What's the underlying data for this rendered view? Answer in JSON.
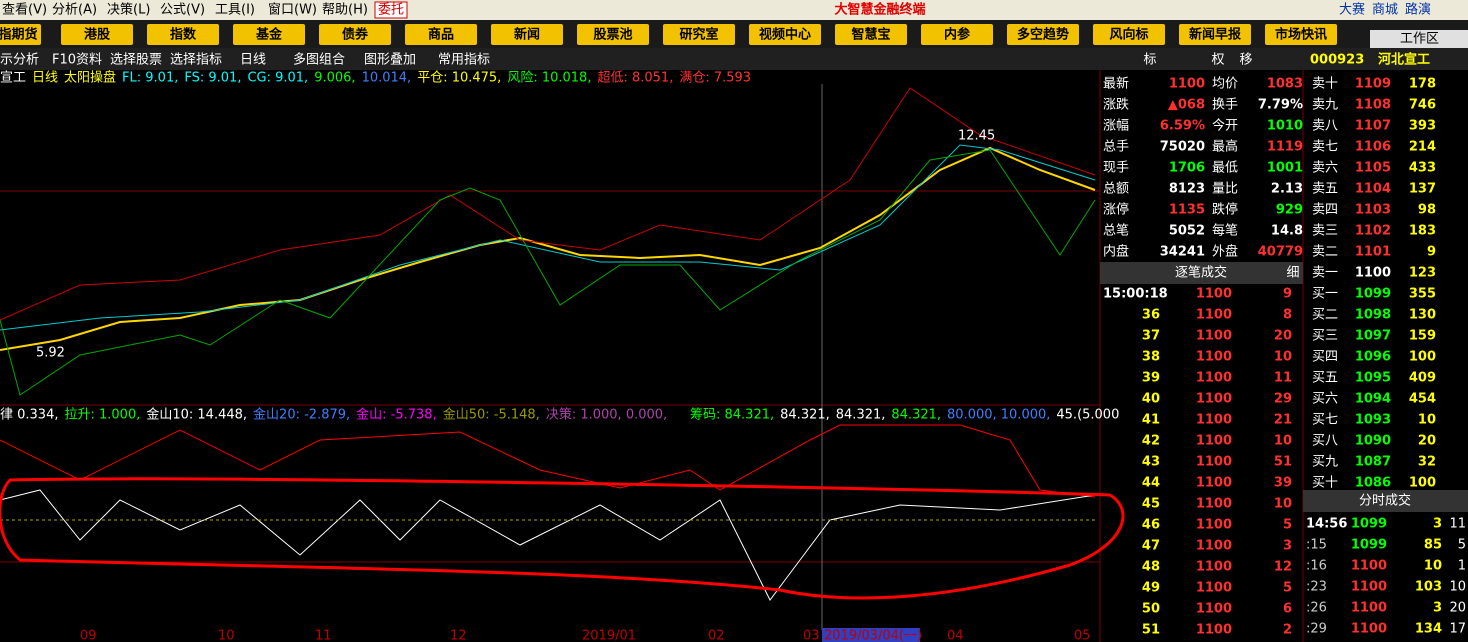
{
  "menu": [
    "查看(V)",
    "分析(A)",
    "决策(L)",
    "公式(V)",
    "工具(I)",
    "窗口(W)",
    "帮助(H)"
  ],
  "entrust": "委托",
  "app_title": "大智慧金融终端",
  "top_right": [
    "大赛",
    "商城",
    "路演"
  ],
  "toolbar": [
    "指期货",
    "港股",
    "指数",
    "基金",
    "债券",
    "商品",
    "新闻",
    "股票池",
    "研究室",
    "视频中心",
    "智慧宝",
    "内参",
    "多空趋势",
    "风向标",
    "新闻早报",
    "市场快讯"
  ],
  "workspace": "工作区",
  "subbar": [
    "示分析",
    "F10资料",
    "选择股票",
    "选择指标",
    "日线",
    "多图组合",
    "图形叠加",
    "常用指标"
  ],
  "right_tabs": [
    "标",
    "权",
    "移"
  ],
  "stock_code": "000923",
  "stock_name": "河北宣工",
  "main_indicator": [
    {
      "text": "宣工",
      "color": "#ffffff"
    },
    {
      "text": "日线",
      "color": "#ffff00"
    },
    {
      "text": "太阳操盘",
      "color": "#ffff00"
    },
    {
      "text": "FL: 9.01,",
      "color": "#00ffff"
    },
    {
      "text": "FS: 9.01,",
      "color": "#00ffff"
    },
    {
      "text": "CG: 9.01,",
      "color": "#00ffff"
    },
    {
      "text": "9.006,",
      "color": "#00ff00"
    },
    {
      "text": "10.014,",
      "color": "#3f7fff"
    },
    {
      "text": "平仓: 10.475,",
      "color": "#ffff00"
    },
    {
      "text": "风险: 10.018,",
      "color": "#00ff00"
    },
    {
      "text": "超低: 8.051,",
      "color": "#ff3333"
    },
    {
      "text": "满仓: 7.593",
      "color": "#ff3333"
    }
  ],
  "lower_indicator": [
    {
      "text": "律 0.334,",
      "color": "#ffffff"
    },
    {
      "text": "拉升: 1.000,",
      "color": "#00ff00"
    },
    {
      "text": "金山10: 14.448,",
      "color": "#ffffff"
    },
    {
      "text": "金山20: -2.879,",
      "color": "#3f7fff"
    },
    {
      "text": "金山: -5.738,",
      "color": "#ff00ff"
    },
    {
      "text": "金山50: -5.148,",
      "color": "#999900"
    },
    {
      "text": "决策: 1.000, 0.000,",
      "color": "#aa44aa"
    },
    {
      "text": "筹码: 84.321,",
      "color": "#00ff00"
    },
    {
      "text": "84.321,",
      "color": "#ffffff"
    },
    {
      "text": "84.321,",
      "color": "#ffffff"
    },
    {
      "text": "84.321,",
      "color": "#00ff00"
    },
    {
      "text": "80.000, 10.000,",
      "color": "#3f7fff"
    },
    {
      "text": "45.(5.000",
      "color": "#ffffff"
    }
  ],
  "price_annotations": [
    "12.45",
    "5.92"
  ],
  "date_axis": [
    "09",
    "10",
    "11",
    "12",
    "2019/01",
    "02",
    "03",
    "2019/03/04(一)",
    "04",
    "05"
  ],
  "quote": [
    [
      "最新",
      "1100",
      "均价",
      "1083"
    ],
    [
      "涨跌",
      "▲068",
      "换手",
      "7.79%"
    ],
    [
      "涨幅",
      "6.59%",
      "今开",
      "1010"
    ],
    [
      "总手",
      "75020",
      "最高",
      "1119"
    ],
    [
      "现手",
      "1706",
      "最低",
      "1001"
    ],
    [
      "总额",
      "8123",
      "量比",
      "2.13"
    ],
    [
      "涨停",
      "1135",
      "跌停",
      "929"
    ],
    [
      "总笔",
      "5052",
      "每笔",
      "14.8"
    ],
    [
      "内盘",
      "34241",
      "外盘",
      "40779"
    ]
  ],
  "tick_header": "逐笔成交",
  "tick_tag": "细",
  "ticks": [
    [
      "15:00:18",
      "1100",
      "9"
    ],
    [
      "36",
      "1100",
      "8"
    ],
    [
      "37",
      "1100",
      "20"
    ],
    [
      "38",
      "1100",
      "10"
    ],
    [
      "39",
      "1100",
      "11"
    ],
    [
      "40",
      "1100",
      "29"
    ],
    [
      "41",
      "1100",
      "21"
    ],
    [
      "42",
      "1100",
      "10"
    ],
    [
      "43",
      "1100",
      "51"
    ],
    [
      "44",
      "1100",
      "39"
    ],
    [
      "45",
      "1100",
      "10"
    ],
    [
      "46",
      "1100",
      "5"
    ],
    [
      "47",
      "1100",
      "3"
    ],
    [
      "48",
      "1100",
      "12"
    ],
    [
      "49",
      "1100",
      "5"
    ],
    [
      "50",
      "1100",
      "6"
    ],
    [
      "51",
      "1100",
      "2"
    ]
  ],
  "book": [
    [
      "卖十",
      "1109",
      "178"
    ],
    [
      "卖九",
      "1108",
      "746"
    ],
    [
      "卖八",
      "1107",
      "393"
    ],
    [
      "卖七",
      "1106",
      "214"
    ],
    [
      "卖六",
      "1105",
      "433"
    ],
    [
      "卖五",
      "1104",
      "137"
    ],
    [
      "卖四",
      "1103",
      "98"
    ],
    [
      "卖三",
      "1102",
      "183"
    ],
    [
      "卖二",
      "1101",
      "9"
    ],
    [
      "卖一",
      "1100",
      "123"
    ],
    [
      "买一",
      "1099",
      "355"
    ],
    [
      "买二",
      "1098",
      "130"
    ],
    [
      "买三",
      "1097",
      "159"
    ],
    [
      "买四",
      "1096",
      "100"
    ],
    [
      "买五",
      "1095",
      "409"
    ],
    [
      "买六",
      "1094",
      "454"
    ],
    [
      "买七",
      "1093",
      "10"
    ],
    [
      "买八",
      "1090",
      "20"
    ],
    [
      "买九",
      "1087",
      "32"
    ],
    [
      "买十",
      "1086",
      "100"
    ]
  ],
  "minute_header": "分时成交",
  "minute": [
    [
      "14:56",
      "1099",
      "3",
      "11"
    ],
    [
      ":15",
      "1099",
      "85",
      "5"
    ],
    [
      ":16",
      "1100",
      "10",
      "1"
    ],
    [
      ":23",
      "1100",
      "103",
      "10"
    ],
    [
      ":26",
      "1100",
      "3",
      "20"
    ],
    [
      ":29",
      "1100",
      "134",
      "17"
    ]
  ]
}
